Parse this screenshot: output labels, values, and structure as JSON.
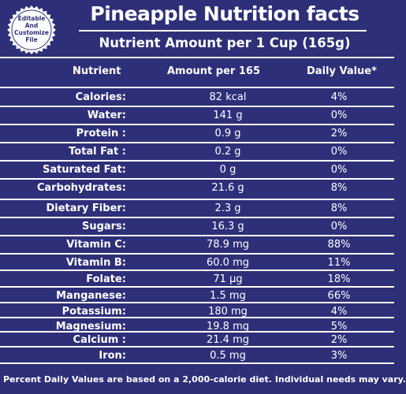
{
  "badge": {
    "lines": [
      "Editable",
      "And",
      "Customize",
      "File"
    ]
  },
  "title": "Pineapple Nutrition facts",
  "subtitle": "Nutrient Amount per 1 Cup (165g)",
  "headers": {
    "nutrient": "Nutrient",
    "amount": "Amount per 165",
    "dv": "Daily Value*"
  },
  "rows": [
    {
      "name": "Calories:",
      "amount": "82 kcal",
      "dv": "4%"
    },
    {
      "name": "Water:",
      "amount": "141 g",
      "dv": "0%"
    },
    {
      "name": "Protein :",
      "amount": "0.9 g",
      "dv": "2%"
    },
    {
      "name": "Total Fat :",
      "amount": "0.2 g",
      "dv": "0%"
    },
    {
      "name": "Saturated Fat:",
      "amount": "0 g",
      "dv": "0%"
    },
    {
      "name": "Carbohydrates:",
      "amount": "21.6 g",
      "dv": "8%"
    },
    {
      "name": "Dietary Fiber:",
      "amount": "2.3 g",
      "dv": "8%"
    },
    {
      "name": "Sugars:",
      "amount": "16.3 g",
      "dv": "0%"
    },
    {
      "name": "Vitamin C:",
      "amount": "78.9 mg",
      "dv": "88%"
    },
    {
      "name": "Vitamin B:",
      "amount": "60.0 mg",
      "dv": "11%"
    },
    {
      "name": "Folate:",
      "amount": "71 μg",
      "dv": "18%"
    },
    {
      "name": "Manganese:",
      "amount": "1.5 mg",
      "dv": "66%"
    },
    {
      "name": "Potassium:",
      "amount": "180 mg",
      "dv": "4%"
    },
    {
      "name": "Magnesium:",
      "amount": "19.8 mg",
      "dv": "5%"
    },
    {
      "name": "Calcium :",
      "amount": "21.4 mg",
      "dv": "2%"
    },
    {
      "name": "Iron:",
      "amount": "0.5 mg",
      "dv": "3%"
    }
  ],
  "footer": "Percent Daily Values are based on a 2,000-calorie diet. Individual needs may vary.",
  "colors": {
    "background": "#2e2f79",
    "text": "#ffffff",
    "badge": "#ffffff"
  }
}
